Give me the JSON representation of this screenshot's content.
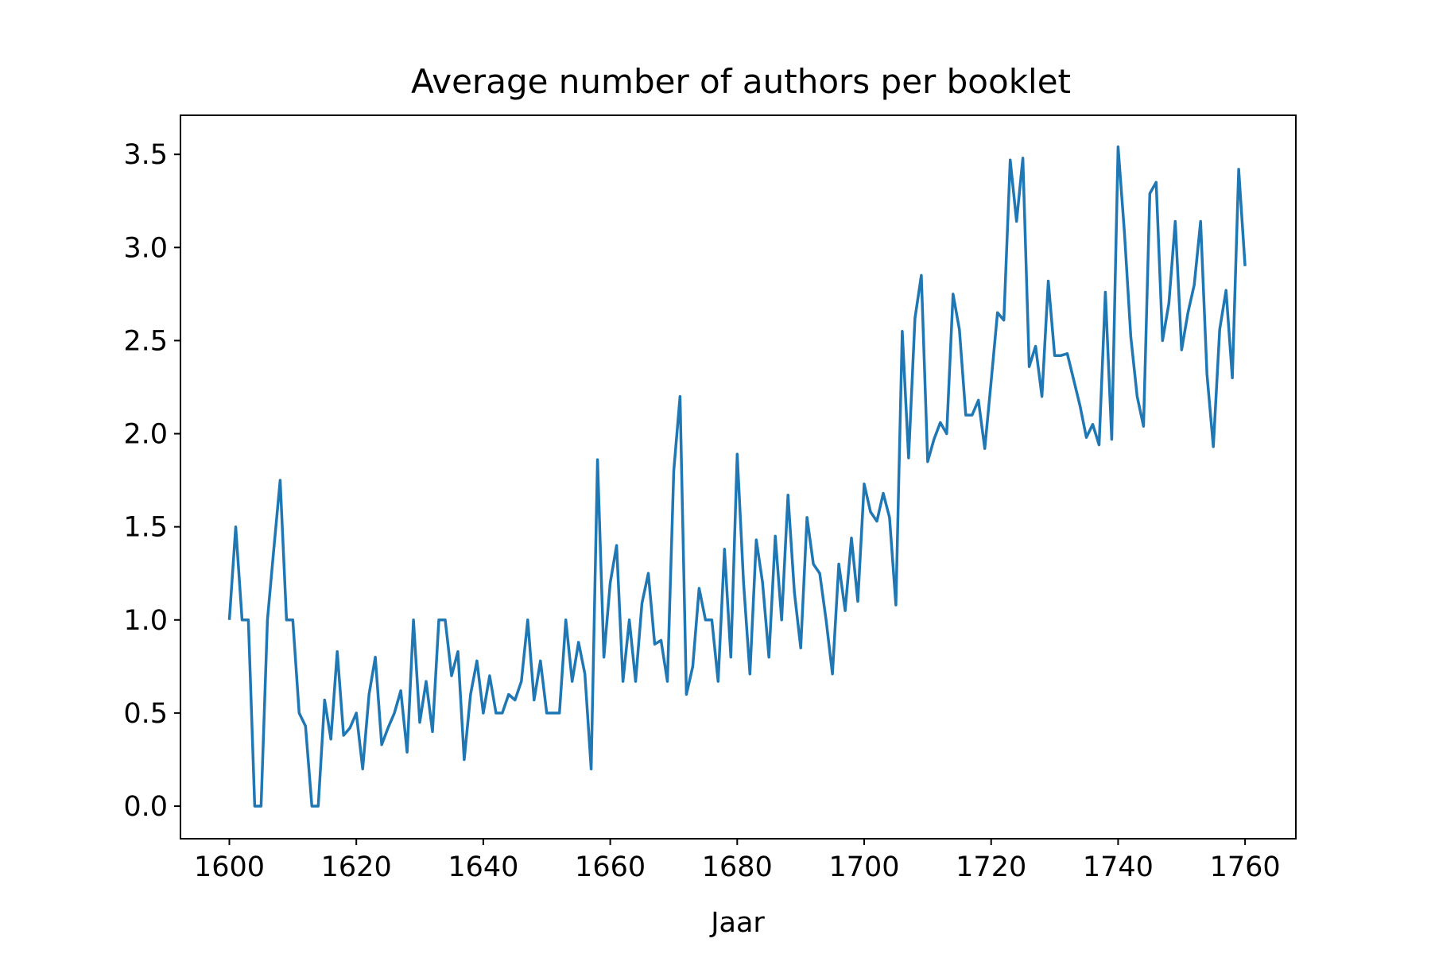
{
  "chart_data": {
    "type": "line",
    "title": "Average number of authors per booklet",
    "xlabel": "Jaar",
    "ylabel": "",
    "xlim": [
      1592.3,
      1768.0
    ],
    "ylim": [
      -0.175,
      3.71
    ],
    "grid": false,
    "legend": "none",
    "line_color": "#1f77b4",
    "x_ticks": [
      1600,
      1620,
      1640,
      1660,
      1680,
      1700,
      1720,
      1740,
      1760
    ],
    "x_tick_labels": [
      "1600",
      "1620",
      "1640",
      "1660",
      "1680",
      "1700",
      "1720",
      "1740",
      "1760"
    ],
    "y_ticks": [
      0.0,
      0.5,
      1.0,
      1.5,
      2.0,
      2.5,
      3.0,
      3.5
    ],
    "y_tick_labels": [
      "0.0",
      "0.5",
      "1.0",
      "1.5",
      "2.0",
      "2.5",
      "3.0",
      "3.5"
    ],
    "series": [
      {
        "x": [
          1600,
          1601,
          1602,
          1603,
          1604,
          1605,
          1606,
          1607,
          1608,
          1609,
          1610,
          1611,
          1612,
          1613,
          1614,
          1615,
          1616,
          1617,
          1618,
          1619,
          1620,
          1621,
          1622,
          1623,
          1624,
          1625,
          1626,
          1627,
          1628,
          1629,
          1630,
          1631,
          1632,
          1633,
          1634,
          1635,
          1636,
          1637,
          1638,
          1639,
          1640,
          1641,
          1642,
          1643,
          1644,
          1645,
          1646,
          1647,
          1648,
          1649,
          1650,
          1651,
          1652,
          1653,
          1654,
          1655,
          1656,
          1657,
          1658,
          1659,
          1660,
          1661,
          1662,
          1663,
          1664,
          1665,
          1666,
          1667,
          1668,
          1669,
          1670,
          1671,
          1672,
          1673,
          1674,
          1675,
          1676,
          1677,
          1678,
          1679,
          1680,
          1681,
          1682,
          1683,
          1684,
          1685,
          1686,
          1687,
          1688,
          1689,
          1690,
          1691,
          1692,
          1693,
          1694,
          1695,
          1696,
          1697,
          1698,
          1699,
          1700,
          1701,
          1702,
          1703,
          1704,
          1705,
          1706,
          1707,
          1708,
          1709,
          1710,
          1711,
          1712,
          1713,
          1714,
          1715,
          1716,
          1717,
          1718,
          1719,
          1720,
          1721,
          1722,
          1723,
          1724,
          1725,
          1726,
          1727,
          1728,
          1729,
          1730,
          1731,
          1732,
          1733,
          1734,
          1735,
          1736,
          1737,
          1738,
          1739,
          1740,
          1741,
          1742,
          1743,
          1744,
          1745,
          1746,
          1747,
          1748,
          1749,
          1750,
          1751,
          1752,
          1753,
          1754,
          1755,
          1756,
          1757,
          1758,
          1759,
          1760
        ],
        "y": [
          1.0,
          1.5,
          1.0,
          1.0,
          0.0,
          0.0,
          1.0,
          1.38,
          1.75,
          1.0,
          1.0,
          0.5,
          0.43,
          0.0,
          0.0,
          0.57,
          0.36,
          0.83,
          0.38,
          0.42,
          0.5,
          0.2,
          0.6,
          0.8,
          0.33,
          0.42,
          0.5,
          0.62,
          0.29,
          1.0,
          0.45,
          0.67,
          0.4,
          1.0,
          1.0,
          0.7,
          0.83,
          0.25,
          0.6,
          0.78,
          0.5,
          0.7,
          0.5,
          0.5,
          0.6,
          0.57,
          0.67,
          1.0,
          0.57,
          0.78,
          0.5,
          0.5,
          0.5,
          1.0,
          0.67,
          0.88,
          0.71,
          0.2,
          1.86,
          0.8,
          1.2,
          1.4,
          0.67,
          1.0,
          0.67,
          1.09,
          1.25,
          0.87,
          0.89,
          0.67,
          1.8,
          2.2,
          0.6,
          0.75,
          1.17,
          1.0,
          1.0,
          0.67,
          1.38,
          0.8,
          1.89,
          1.2,
          0.71,
          1.43,
          1.2,
          0.8,
          1.45,
          1.0,
          1.67,
          1.15,
          0.85,
          1.55,
          1.3,
          1.25,
          1.0,
          0.71,
          1.3,
          1.05,
          1.44,
          1.1,
          1.73,
          1.58,
          1.53,
          1.68,
          1.55,
          1.08,
          2.55,
          1.87,
          2.62,
          2.85,
          1.85,
          1.97,
          2.06,
          2.0,
          2.75,
          2.56,
          2.1,
          2.1,
          2.18,
          1.92,
          2.28,
          2.65,
          2.61,
          3.47,
          3.14,
          3.48,
          2.36,
          2.47,
          2.2,
          2.82,
          2.42,
          2.42,
          2.43,
          2.29,
          2.15,
          1.98,
          2.05,
          1.94,
          2.76,
          1.97,
          3.54,
          3.08,
          2.52,
          2.2,
          2.04,
          3.29,
          3.35,
          2.5,
          2.7,
          3.14,
          2.45,
          2.65,
          2.8,
          3.14,
          2.32,
          1.93,
          2.56,
          2.77,
          2.3,
          3.42,
          2.9
        ]
      }
    ]
  }
}
